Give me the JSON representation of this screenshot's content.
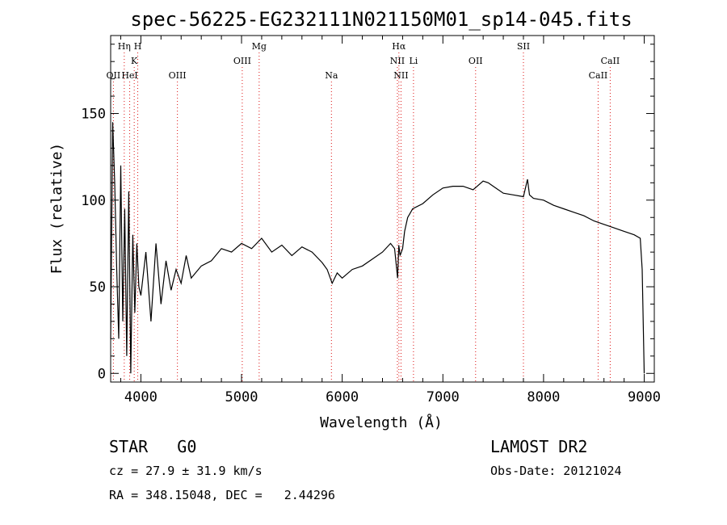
{
  "chart_data": {
    "type": "line",
    "title": "spec-56225-EG232111N021150M01_sp14-045.fits",
    "xlabel": "Wavelength (Å)",
    "ylabel": "Flux (relative)",
    "xlim": [
      3700,
      9100
    ],
    "ylim": [
      -5,
      195
    ],
    "x_ticks": [
      4000,
      5000,
      6000,
      7000,
      8000,
      9000
    ],
    "y_ticks": [
      0,
      50,
      100,
      150
    ],
    "grid": false,
    "series": [
      {
        "x": [
          3700,
          3720,
          3740,
          3760,
          3780,
          3800,
          3820,
          3840,
          3860,
          3880,
          3900,
          3920,
          3940,
          3960,
          3980,
          4000,
          4050,
          4100,
          4150,
          4200,
          4250,
          4300,
          4350,
          4400,
          4450,
          4500,
          4600,
          4700,
          4800,
          4900,
          5000,
          5100,
          5200,
          5300,
          5400,
          5500,
          5600,
          5700,
          5800,
          5850,
          5900,
          5950,
          6000,
          6100,
          6200,
          6300,
          6400,
          6480,
          6520,
          6550,
          6562,
          6575,
          6600,
          6620,
          6650,
          6700,
          6800,
          6900,
          7000,
          7100,
          7200,
          7300,
          7400,
          7450,
          7500,
          7600,
          7700,
          7800,
          7840,
          7860,
          7900,
          8000,
          8100,
          8200,
          8300,
          8400,
          8500,
          8600,
          8700,
          8800,
          8900,
          8960,
          8980,
          9000
        ],
        "y": [
          20,
          145,
          110,
          60,
          20,
          120,
          30,
          95,
          10,
          105,
          0,
          80,
          35,
          75,
          50,
          45,
          70,
          30,
          75,
          40,
          65,
          48,
          60,
          52,
          68,
          55,
          62,
          65,
          72,
          70,
          75,
          72,
          78,
          70,
          74,
          68,
          73,
          70,
          64,
          60,
          52,
          58,
          55,
          60,
          62,
          66,
          70,
          75,
          72,
          55,
          74,
          68,
          72,
          82,
          90,
          95,
          98,
          103,
          107,
          108,
          108,
          106,
          111,
          110,
          108,
          104,
          103,
          102,
          112,
          103,
          101,
          100,
          97,
          95,
          93,
          91,
          88,
          86,
          84,
          82,
          80,
          78,
          60,
          0
        ]
      }
    ],
    "line_markers": [
      {
        "label": "OII",
        "wavelength": 3727,
        "row": 3
      },
      {
        "label": "Hη",
        "wavelength": 3835,
        "row": 1
      },
      {
        "label": "K",
        "wavelength": 3934,
        "row": 2
      },
      {
        "label": "H",
        "wavelength": 3969,
        "row": 1
      },
      {
        "label": "HeI",
        "wavelength": 3889,
        "row": 3
      },
      {
        "label": "OIII",
        "wavelength": 4363,
        "row": 3
      },
      {
        "label": "OIII",
        "wavelength": 5007,
        "row": 2
      },
      {
        "label": "Mg",
        "wavelength": 5175,
        "row": 1
      },
      {
        "label": "Na",
        "wavelength": 5893,
        "row": 3
      },
      {
        "label": "Hα",
        "wavelength": 6563,
        "row": 1
      },
      {
        "label": "NII",
        "wavelength": 6548,
        "row": 2
      },
      {
        "label": "NII",
        "wavelength": 6584,
        "row": 3
      },
      {
        "label": "Li",
        "wavelength": 6708,
        "row": 2
      },
      {
        "label": "OII",
        "wavelength": 7325,
        "row": 2
      },
      {
        "label": "SII",
        "wavelength": 7800,
        "row": 1
      },
      {
        "label": "CaII",
        "wavelength": 8662,
        "row": 2
      },
      {
        "label": "CaII",
        "wavelength": 8542,
        "row": 3
      }
    ]
  },
  "footer": {
    "object_class": "STAR",
    "subclass": "G0",
    "survey": "LAMOST DR2",
    "cz": "cz = 27.9 ± 31.9 km/s",
    "obs_date": "Obs-Date: 20121024",
    "coords": "RA = 348.15048, DEC =   2.44296"
  }
}
